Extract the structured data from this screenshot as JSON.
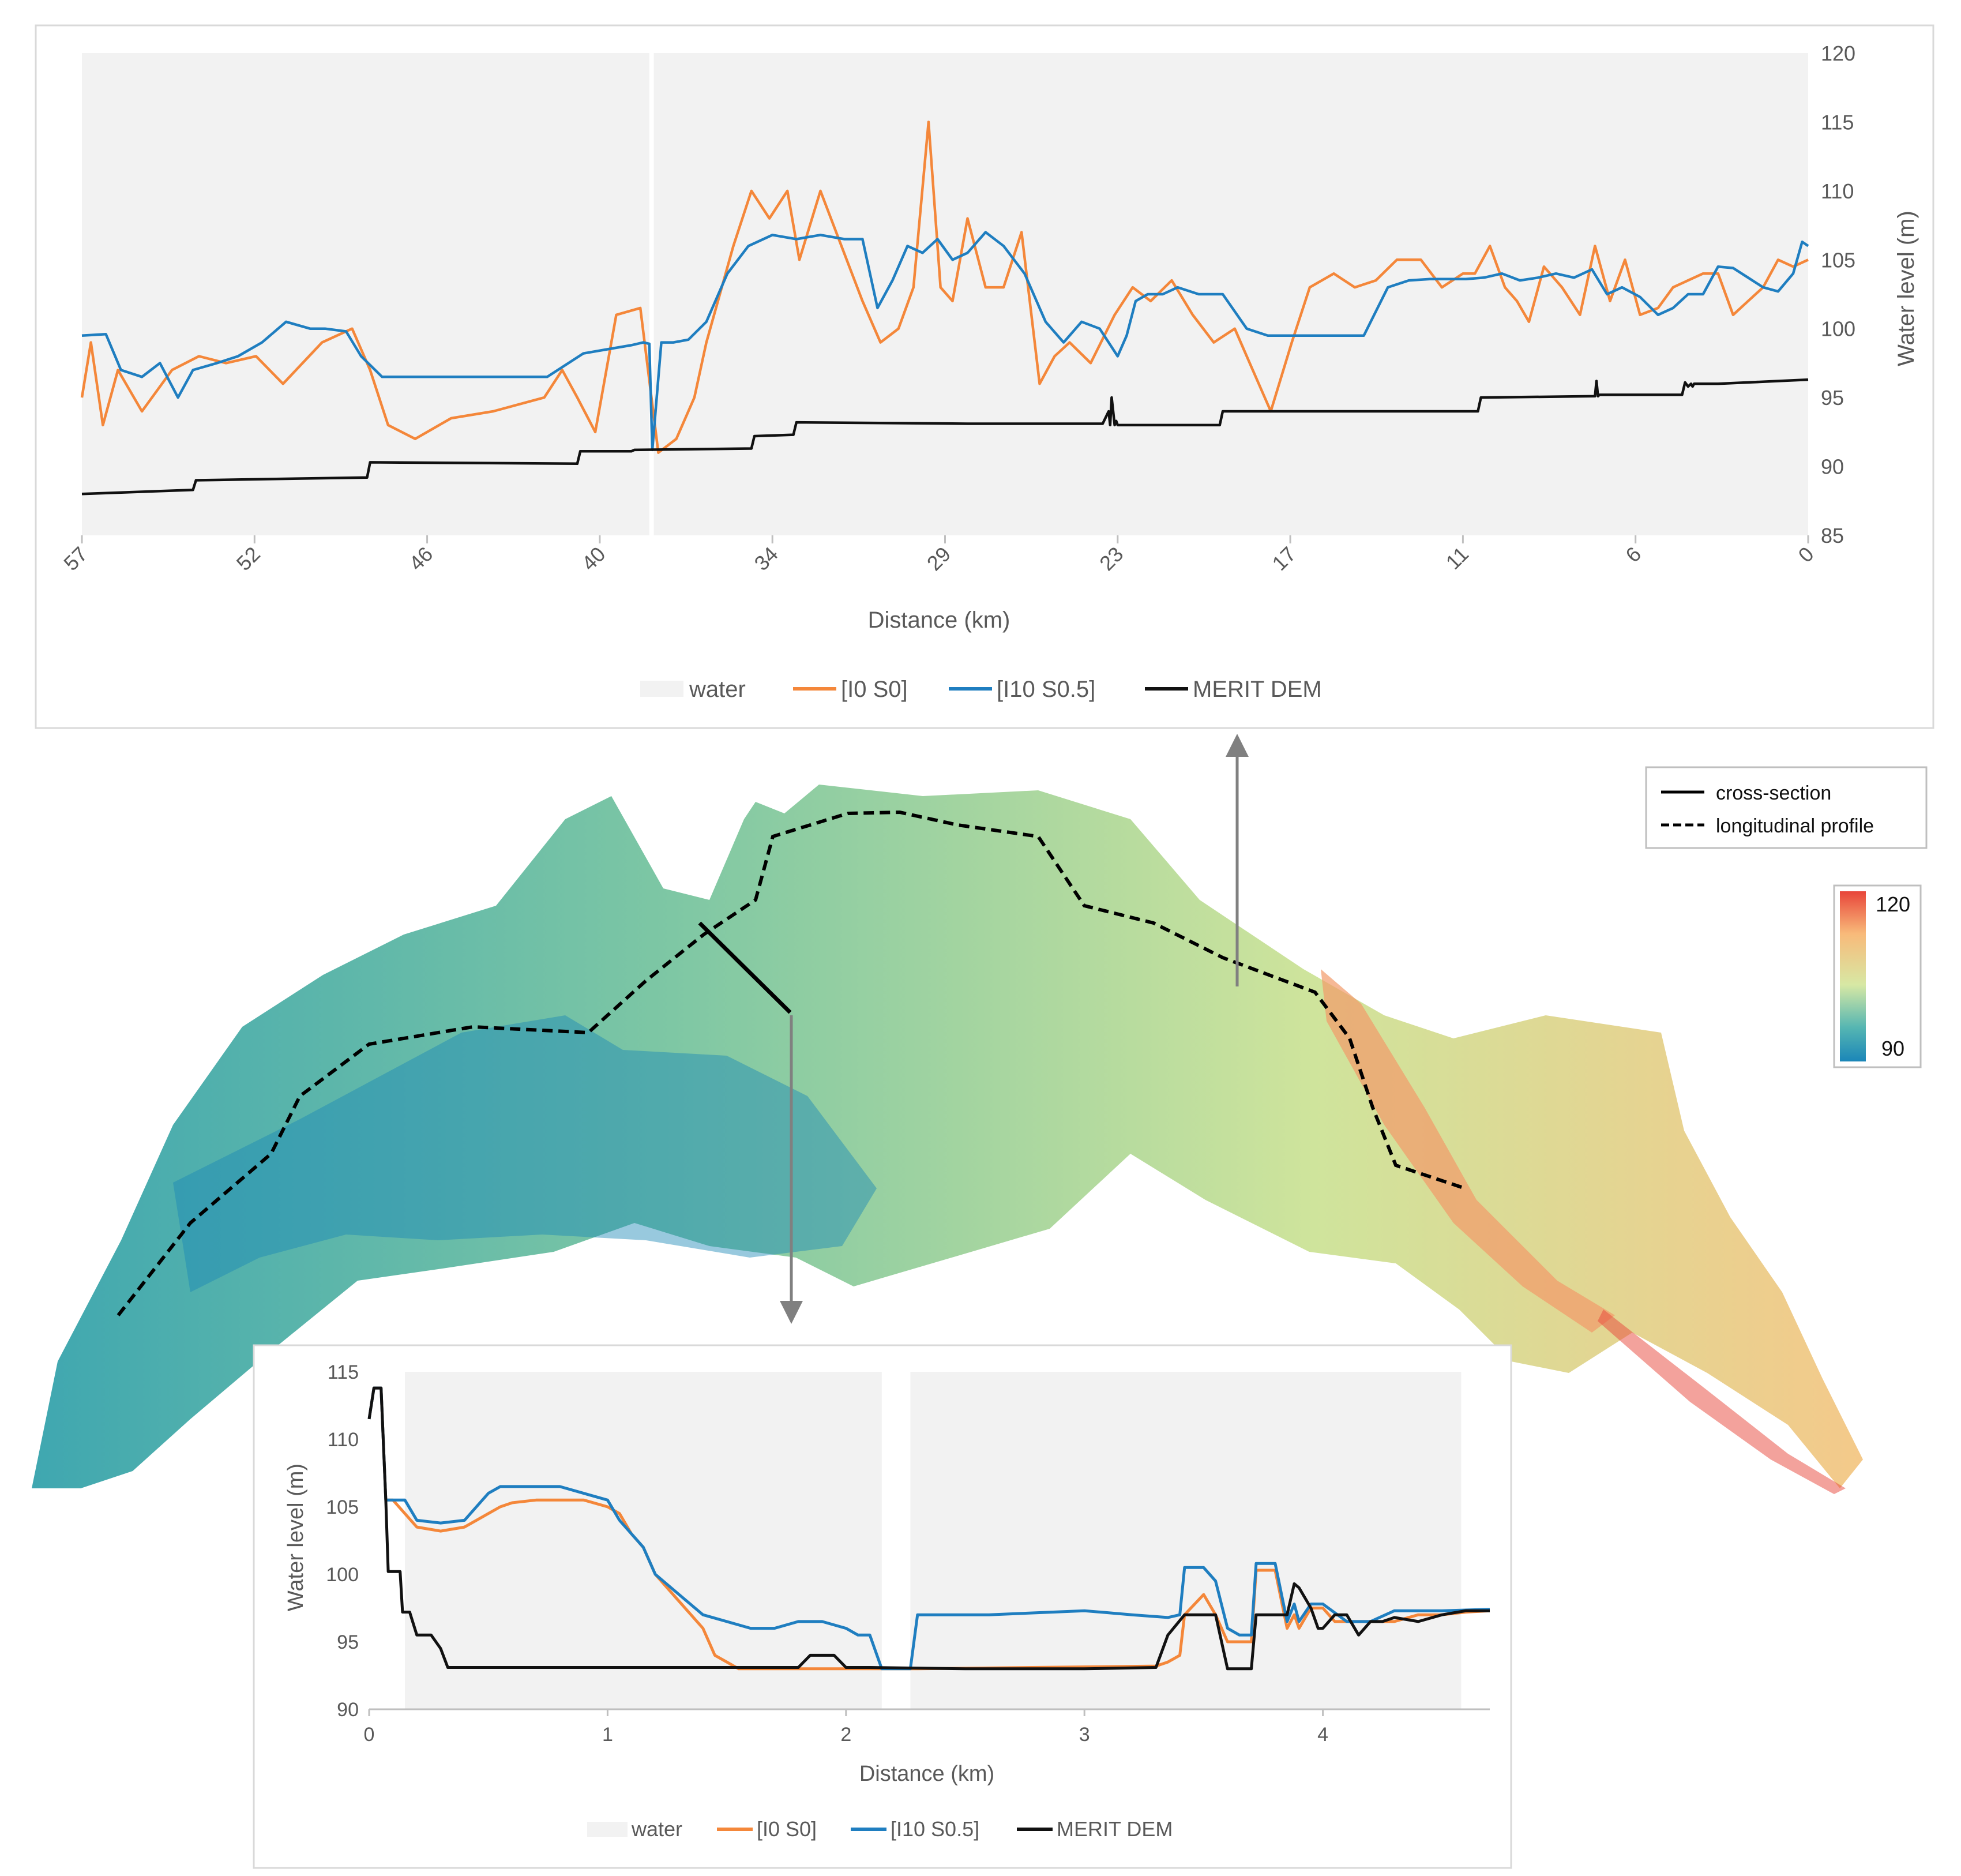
{
  "colors": {
    "water": "#f2f2f2",
    "run_i0_s0": "#f4873a",
    "run_i10_s05": "#1f7ec0",
    "merit_dem": "#111111",
    "axis_text": "#595959",
    "panel_border": "#d9d9d9",
    "arrow": "#808080"
  },
  "legend_labels": {
    "water": "water",
    "i0_s0": "[I0 S0]",
    "i10_s05": "[I10 S0.5]",
    "merit": "MERIT DEM"
  },
  "map": {
    "legend": {
      "cross_section": "cross-section",
      "longitudinal_profile": "longitudinal profile"
    },
    "colorbar": {
      "max_label": "120",
      "min_label": "90",
      "min": 90,
      "max": 120
    }
  },
  "chart_data": [
    {
      "id": "longitudinal",
      "type": "line",
      "xlabel": "Distance (km)",
      "ylabel": "Water level (m)",
      "x_reversed": true,
      "xlim": [
        57.5,
        0
      ],
      "ylim": [
        85,
        120
      ],
      "y_ticks": [
        85,
        90,
        95,
        100,
        105,
        110,
        115,
        120
      ],
      "x_tick_labels": [
        "57",
        "52",
        "46",
        "40",
        "34",
        "29",
        "23",
        "17",
        "11",
        "6",
        "0"
      ],
      "x_ticks": [
        57.5,
        51.75,
        46.0,
        40.25,
        34.5,
        28.75,
        23.0,
        17.25,
        11.5,
        5.75,
        0.0
      ],
      "water_gaps": [
        [
          38.6,
          38.45
        ]
      ],
      "series": [
        {
          "name": "[I0 S0]",
          "color_key": "run_i0_s0",
          "x": [
            57.5,
            57.2,
            56.8,
            56.3,
            55.5,
            54.5,
            53.6,
            52.7,
            51.7,
            50.8,
            49.5,
            48.5,
            47.9,
            47.3,
            46.4,
            45.2,
            43.8,
            42.1,
            41.5,
            41.0,
            40.4,
            39.7,
            38.9,
            38.3,
            37.7,
            37.1,
            36.7,
            35.8,
            35.2,
            34.6,
            34.0,
            33.6,
            32.9,
            32.2,
            31.5,
            30.9,
            30.3,
            29.8,
            29.3,
            28.9,
            28.5,
            28.0,
            27.4,
            26.8,
            26.2,
            25.6,
            25.1,
            24.6,
            23.9,
            23.1,
            22.5,
            21.9,
            21.2,
            20.5,
            19.8,
            19.1,
            18.5,
            17.9,
            17.2,
            16.6,
            15.8,
            15.1,
            14.4,
            13.7,
            12.9,
            12.2,
            11.5,
            11.1,
            10.6,
            10.1,
            9.7,
            9.3,
            8.8,
            8.2,
            7.6,
            7.1,
            6.6,
            6.1,
            5.6,
            5.0,
            4.5,
            4.0,
            3.5,
            3.0,
            2.5,
            2.0,
            1.5,
            1.0,
            0.5,
            0.0
          ],
          "y": [
            95,
            99,
            93,
            97,
            94,
            97,
            98,
            97.5,
            98,
            96,
            99,
            100,
            97,
            93,
            92,
            93.5,
            94,
            95,
            97,
            95,
            92.5,
            101,
            101.5,
            91,
            92,
            95,
            99,
            106,
            110,
            108,
            110,
            105,
            110,
            106,
            102,
            99,
            100,
            103,
            115,
            103,
            102,
            108,
            103,
            103,
            107,
            96,
            98,
            99,
            97.5,
            101,
            103,
            102,
            103.5,
            101,
            99,
            100,
            97,
            94,
            99,
            103,
            104,
            103,
            103.5,
            105,
            105,
            103,
            104,
            104,
            106,
            103,
            102,
            100.5,
            104.5,
            103,
            101,
            106,
            102,
            105,
            101,
            101.5,
            103,
            103.5,
            104,
            104,
            101,
            102,
            103,
            105,
            104.5,
            105
          ]
        },
        {
          "name": "[I10 S0.5]",
          "color_key": "run_i10_s05",
          "x": [
            57.5,
            56.7,
            56.2,
            55.5,
            54.9,
            54.3,
            53.8,
            53.0,
            52.3,
            51.5,
            50.7,
            49.9,
            49.4,
            48.7,
            48.2,
            47.5,
            46.5,
            45.0,
            43.5,
            42.0,
            40.8,
            40.0,
            39.2,
            38.8,
            38.6,
            38.5,
            38.2,
            37.8,
            37.3,
            36.7,
            36.0,
            35.3,
            34.5,
            33.7,
            32.9,
            32.1,
            31.5,
            31.0,
            30.5,
            30.0,
            29.5,
            29.0,
            28.5,
            28.0,
            27.4,
            26.8,
            26.1,
            25.4,
            24.8,
            24.2,
            23.6,
            23.0,
            22.7,
            22.4,
            22.0,
            21.5,
            21.0,
            20.3,
            19.5,
            18.7,
            18.0,
            17.3,
            16.5,
            15.6,
            14.8,
            14.0,
            13.3,
            12.6,
            12.0,
            11.4,
            10.8,
            10.2,
            9.6,
            9.0,
            8.4,
            7.8,
            7.2,
            6.7,
            6.2,
            5.6,
            5.0,
            4.5,
            4.0,
            3.5,
            3.0,
            2.5,
            2.0,
            1.5,
            1.0,
            0.5,
            0.2,
            0.0
          ],
          "y": [
            99.5,
            99.6,
            97,
            96.5,
            97.5,
            95,
            97,
            97.5,
            98,
            99,
            100.5,
            100,
            100,
            99.8,
            98,
            96.5,
            96.5,
            96.5,
            96.5,
            96.5,
            98.2,
            98.5,
            98.8,
            99,
            98.9,
            91.2,
            99,
            99,
            99.2,
            100.5,
            104,
            106,
            106.8,
            106.5,
            106.8,
            106.5,
            106.5,
            101.5,
            103.5,
            106,
            105.5,
            106.5,
            105,
            105.5,
            107,
            106,
            104,
            100.5,
            99,
            100.5,
            100,
            98,
            99.5,
            102,
            102.5,
            102.5,
            103,
            102.5,
            102.5,
            100,
            99.5,
            99.5,
            99.5,
            99.5,
            99.5,
            103,
            103.5,
            103.6,
            103.6,
            103.6,
            103.7,
            104,
            103.5,
            103.7,
            104,
            103.7,
            104.3,
            102.5,
            103,
            102.3,
            101,
            101.5,
            102.5,
            102.5,
            104.5,
            104.4,
            103.7,
            103,
            102.7,
            104,
            106.3,
            106
          ]
        },
        {
          "name": "MERIT DEM",
          "color_key": "merit_dem",
          "x": [
            57.5,
            53.8,
            53.7,
            48.0,
            47.9,
            41.0,
            40.9,
            39.2,
            39.1,
            35.2,
            35.1,
            33.8,
            33.7,
            28.0,
            23.5,
            23.3,
            23.25,
            23.2,
            23.1,
            23.05,
            23.0,
            22.8,
            22.7,
            19.6,
            19.5,
            11.0,
            10.9,
            7.1,
            7.05,
            7.0,
            6.95,
            4.2,
            4.1,
            4.0,
            3.9,
            3.85,
            3.8,
            3.0,
            2.0,
            1.0,
            0.0
          ],
          "y": [
            88,
            88.3,
            89,
            89.2,
            90.3,
            90.2,
            91.1,
            91.1,
            91.2,
            91.3,
            92.2,
            92.3,
            93.2,
            93.1,
            93.1,
            94,
            93,
            95,
            93,
            93.3,
            93.0,
            93.0,
            93.0,
            93.0,
            94,
            94,
            95,
            95.1,
            96.2,
            95.1,
            95.2,
            95.2,
            96.1,
            95.8,
            96.0,
            95.8,
            96.0,
            96.0,
            96.1,
            96.2,
            96.3
          ]
        }
      ]
    },
    {
      "id": "cross_section",
      "type": "line",
      "xlabel": "Distance (km)",
      "ylabel": "Water level (m)",
      "xlim": [
        0,
        4.7
      ],
      "ylim": [
        90,
        115
      ],
      "y_ticks": [
        90,
        95,
        100,
        105,
        110,
        115
      ],
      "x_ticks": [
        0,
        1,
        2,
        3,
        4
      ],
      "x_tick_labels": [
        "0",
        "1",
        "2",
        "3",
        "4"
      ],
      "water_spans": [
        [
          0.15,
          2.15
        ],
        [
          2.27,
          4.58
        ]
      ],
      "series": [
        {
          "name": "[I0 S0]",
          "color_key": "run_i0_s0",
          "x": [
            0,
            0.02,
            0.05,
            0.07,
            0.1,
            0.2,
            0.3,
            0.4,
            0.45,
            0.5,
            0.55,
            0.6,
            0.7,
            0.8,
            0.9,
            1.0,
            1.05,
            1.1,
            1.15,
            1.2,
            1.3,
            1.4,
            1.45,
            1.5,
            1.55,
            2.15,
            2.3,
            3.3,
            3.35,
            3.4,
            3.42,
            3.5,
            3.55,
            3.6,
            3.7,
            3.72,
            3.8,
            3.85,
            3.88,
            3.9,
            3.95,
            4.0,
            4.05,
            4.2,
            4.3,
            4.4,
            4.5,
            4.6,
            4.7
          ],
          "y": [
            111.5,
            113.8,
            113.8,
            105.5,
            105.5,
            103.5,
            103.2,
            103.5,
            104,
            104.5,
            105,
            105.3,
            105.5,
            105.5,
            105.5,
            105,
            104.5,
            103,
            102,
            100,
            98,
            96,
            94,
            93.5,
            93,
            93,
            93,
            93.2,
            93.5,
            94,
            97,
            98.5,
            97,
            95,
            95,
            100.3,
            100.3,
            96,
            97,
            96,
            97.5,
            97.5,
            96.5,
            96.5,
            96.5,
            97,
            97,
            97.2,
            97.3
          ]
        },
        {
          "name": "[I10 S0.5]",
          "color_key": "run_i10_s05",
          "x": [
            0,
            0.02,
            0.05,
            0.07,
            0.15,
            0.2,
            0.3,
            0.4,
            0.45,
            0.5,
            0.55,
            0.6,
            0.8,
            1.0,
            1.05,
            1.15,
            1.2,
            1.3,
            1.4,
            1.5,
            1.6,
            1.7,
            1.8,
            1.9,
            2.0,
            2.05,
            2.1,
            2.15,
            2.27,
            2.3,
            2.6,
            3.0,
            3.2,
            3.35,
            3.4,
            3.42,
            3.5,
            3.55,
            3.6,
            3.65,
            3.7,
            3.72,
            3.8,
            3.85,
            3.88,
            3.9,
            3.95,
            4.0,
            4.1,
            4.2,
            4.3,
            4.5,
            4.7
          ],
          "y": [
            111.5,
            113.8,
            113.8,
            105.5,
            105.5,
            104,
            103.8,
            104,
            105,
            106,
            106.5,
            106.5,
            106.5,
            105.5,
            104,
            102,
            100,
            98.5,
            97,
            96.5,
            96,
            96,
            96.5,
            96.5,
            96,
            95.5,
            95.5,
            93,
            93,
            97,
            97,
            97.3,
            97,
            96.8,
            97,
            100.5,
            100.5,
            99.5,
            96,
            95.5,
            95.5,
            100.8,
            100.8,
            96.5,
            97.8,
            96.5,
            97.8,
            97.8,
            96.5,
            96.5,
            97.3,
            97.3,
            97.4
          ]
        },
        {
          "name": "MERIT DEM",
          "color_key": "merit_dem",
          "x": [
            0,
            0.02,
            0.05,
            0.07,
            0.08,
            0.13,
            0.14,
            0.17,
            0.2,
            0.23,
            0.26,
            0.3,
            0.33,
            0.35,
            1.8,
            1.85,
            1.95,
            2.0,
            2.1,
            2.5,
            3.0,
            3.3,
            3.35,
            3.42,
            3.5,
            3.55,
            3.6,
            3.7,
            3.72,
            3.8,
            3.85,
            3.88,
            3.9,
            3.95,
            3.98,
            4.0,
            4.05,
            4.1,
            4.15,
            4.2,
            4.25,
            4.3,
            4.4,
            4.5,
            4.6,
            4.7
          ],
          "y": [
            111.5,
            113.8,
            113.8,
            105.5,
            100.2,
            100.2,
            97.2,
            97.2,
            95.5,
            95.5,
            95.5,
            94.5,
            93.1,
            93.1,
            93.1,
            94,
            94,
            93.1,
            93.1,
            93,
            93,
            93.1,
            95.5,
            97,
            97,
            97,
            93,
            93,
            97,
            97,
            97,
            99.3,
            99,
            97.5,
            96,
            96,
            97,
            97,
            95.5,
            96.5,
            96.5,
            96.8,
            96.5,
            97,
            97.3,
            97.3
          ]
        }
      ]
    }
  ]
}
